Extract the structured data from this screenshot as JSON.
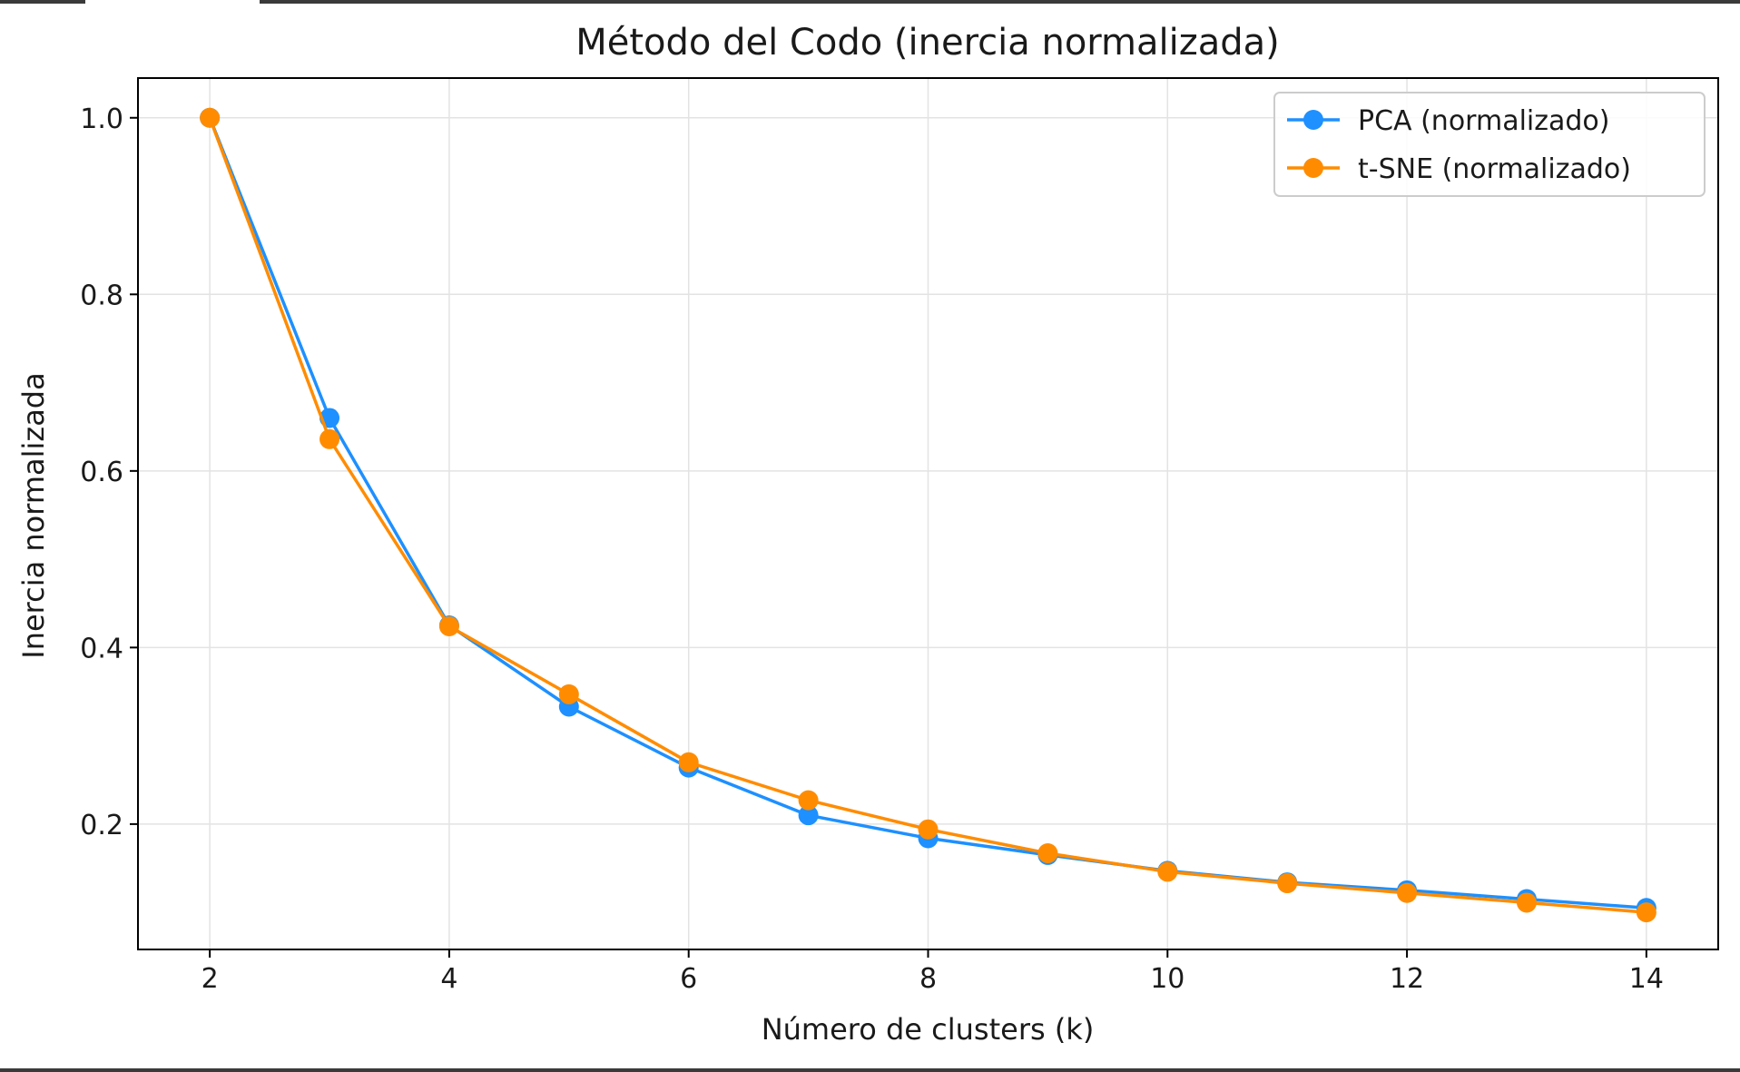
{
  "chart_data": {
    "type": "line",
    "title": "Método del Codo (inercia normalizada)",
    "xlabel": "Número de clusters (k)",
    "ylabel": "Inercia normalizada",
    "x": [
      2,
      3,
      4,
      5,
      6,
      7,
      8,
      9,
      10,
      11,
      12,
      13,
      14
    ],
    "xlim": [
      1.4,
      14.6
    ],
    "ylim": [
      0.058,
      1.045
    ],
    "xticks": [
      2,
      4,
      6,
      8,
      10,
      12,
      14
    ],
    "xtick_labels": [
      "2",
      "4",
      "6",
      "8",
      "10",
      "12",
      "14"
    ],
    "yticks": [
      0.2,
      0.4,
      0.6,
      0.8,
      1.0
    ],
    "ytick_labels": [
      "0.2",
      "0.4",
      "0.6",
      "0.8",
      "1.0"
    ],
    "grid": true,
    "legend_position": "top-right",
    "series": [
      {
        "name": "PCA (normalizado)",
        "color": "#1e90ff",
        "marker": "circle",
        "values": [
          1.0,
          0.66,
          0.425,
          0.333,
          0.264,
          0.21,
          0.184,
          0.165,
          0.147,
          0.134,
          0.125,
          0.115,
          0.105
        ]
      },
      {
        "name": "t-SNE (normalizado)",
        "color": "#ff8c00",
        "marker": "circle",
        "values": [
          1.0,
          0.636,
          0.424,
          0.347,
          0.27,
          0.227,
          0.194,
          0.167,
          0.146,
          0.133,
          0.122,
          0.111,
          0.1
        ]
      }
    ]
  }
}
